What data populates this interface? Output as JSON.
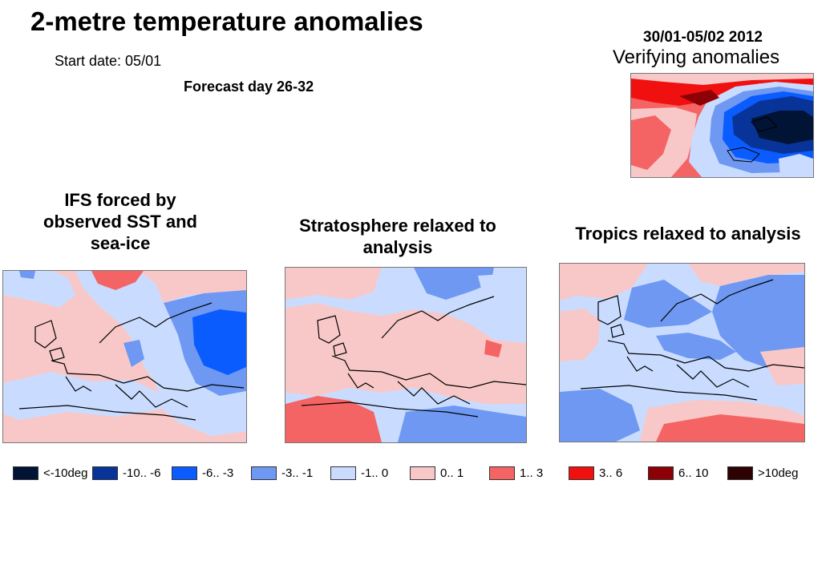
{
  "header": {
    "title": "2-metre temperature anomalies",
    "start_date": "Start date: 05/01",
    "forecast_day": "Forecast day 26-32"
  },
  "verify": {
    "date": "30/01-05/02  2012",
    "label": "Verifying  anomalies"
  },
  "panels": [
    {
      "title": "IFS forced by observed SST and sea-ice"
    },
    {
      "title": "Stratosphere relaxed to analysis"
    },
    {
      "title": "Tropics relaxed to analysis"
    }
  ],
  "legend": [
    {
      "label": "<-10deg",
      "color": "#021436"
    },
    {
      "label": "-10.. -6",
      "color": "#08349a"
    },
    {
      "label": "-6.. -3",
      "color": "#0a5cff"
    },
    {
      "label": "-3.. -1",
      "color": "#6e98f2"
    },
    {
      "label": "-1.. 0",
      "color": "#c9dcff"
    },
    {
      "label": "0.. 1",
      "color": "#f8c8c8"
    },
    {
      "label": "1.. 3",
      "color": "#f56464"
    },
    {
      "label": "3.. 6",
      "color": "#f01010"
    },
    {
      "label": "6.. 10",
      "color": "#8c0006"
    },
    {
      "label": ">10deg",
      "color": "#2e0202"
    }
  ]
}
